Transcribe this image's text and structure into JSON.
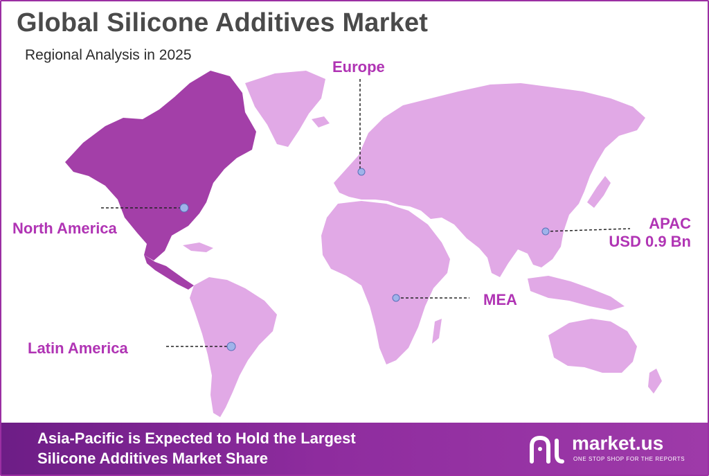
{
  "header": {
    "title": "Global Silicone Additives Market",
    "subtitle": "Regional Analysis in 2025"
  },
  "colors": {
    "highlight_region": "#a33fa8",
    "other_regions": "#e1a9e6",
    "label_text": "#b034b4",
    "banner_start": "#6d1d86",
    "banner_end": "#9e3aa9",
    "border": "#9b2fa3"
  },
  "regions": {
    "europe": {
      "label": "Europe"
    },
    "north_america": {
      "label": "North America",
      "highlighted": true
    },
    "apac": {
      "label": "APAC",
      "value": "USD 0.9 Bn"
    },
    "mea": {
      "label": "MEA"
    },
    "latin_america": {
      "label": "Latin America"
    }
  },
  "banner": {
    "line1": "Asia-Pacific is Expected to Hold the Largest",
    "line2": "Silicone Additives Market Share"
  },
  "brand": {
    "name": "market.us",
    "tagline": "ONE STOP SHOP FOR THE REPORTS",
    "logo_icon": "market-us-logo-icon"
  }
}
